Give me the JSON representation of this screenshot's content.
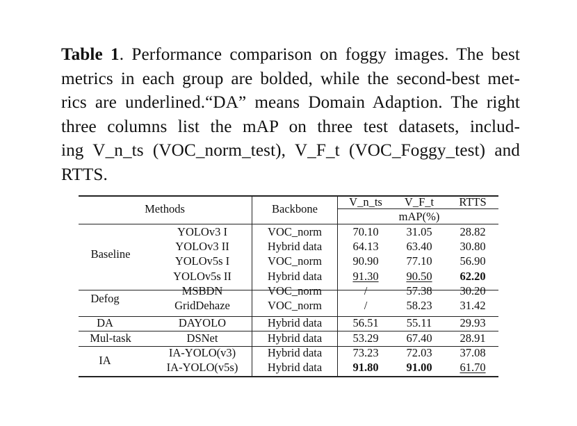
{
  "caption": {
    "label": "Table 1",
    "lines": [
      ". Performance comparison on foggy images. The best",
      "metrics in each group are bolded, while the second-best met-",
      "rics are underlined.“DA” means Domain Adaption. The right",
      "three columns list the mAP on three test datasets, includ-",
      "ing V_n_ts (VOC_norm_test), V_F_t (VOC_Foggy_test) and",
      "RTTS."
    ]
  },
  "table": {
    "headers": {
      "methods": "Methods",
      "backbone": "Backbone",
      "col1": "V_n_ts",
      "col2": "V_F_t",
      "col3": "RTTS",
      "metric": "mAP(%)"
    },
    "groups": [
      {
        "name": "Baseline",
        "rows": [
          {
            "method": "YOLOv3 I",
            "backbone": "VOC_norm",
            "v1": "70.10",
            "v2": "31.05",
            "v3": "28.82",
            "style": [
              "",
              "",
              ""
            ]
          },
          {
            "method": "YOLOv3 II",
            "backbone": "Hybrid data",
            "v1": "64.13",
            "v2": "63.40",
            "v3": "30.80",
            "style": [
              "",
              "",
              ""
            ]
          },
          {
            "method": "YOLOv5s I",
            "backbone": "VOC_norm",
            "v1": "90.90",
            "v2": "77.10",
            "v3": "56.90",
            "style": [
              "",
              "",
              ""
            ]
          },
          {
            "method": "YOLOv5s II",
            "backbone": "Hybrid data",
            "v1": "91.30",
            "v2": "90.50",
            "v3": "62.20",
            "style": [
              "ul",
              "ul",
              "bold"
            ]
          }
        ]
      },
      {
        "name": "Defog",
        "rows": [
          {
            "method": "MSBDN",
            "backbone": "VOC_norm",
            "v1": "/",
            "v2": "57.38",
            "v3": "30.20",
            "style": [
              "",
              "",
              ""
            ]
          },
          {
            "method": "GridDehaze",
            "backbone": "VOC_norm",
            "v1": "/",
            "v2": "58.23",
            "v3": "31.42",
            "style": [
              "",
              "",
              ""
            ]
          }
        ]
      },
      {
        "name": "DA",
        "rows": [
          {
            "method": "DAYOLO",
            "backbone": "Hybrid data",
            "v1": "56.51",
            "v2": "55.11",
            "v3": "29.93",
            "style": [
              "",
              "",
              ""
            ]
          }
        ]
      },
      {
        "name": "Mul-task",
        "rows": [
          {
            "method": "DSNet",
            "backbone": "Hybrid data",
            "v1": "53.29",
            "v2": "67.40",
            "v3": "28.91",
            "style": [
              "",
              "",
              ""
            ]
          }
        ]
      },
      {
        "name": "IA",
        "rows": [
          {
            "method": "IA-YOLO(v3)",
            "backbone": "Hybrid data",
            "v1": "73.23",
            "v2": "72.03",
            "v3": "37.08",
            "style": [
              "",
              "",
              ""
            ]
          },
          {
            "method": "IA-YOLO(v5s)",
            "backbone": "Hybrid data",
            "v1": "91.80",
            "v2": "91.00",
            "v3": "61.70",
            "style": [
              "bold",
              "bold",
              "ul"
            ]
          }
        ]
      }
    ]
  }
}
